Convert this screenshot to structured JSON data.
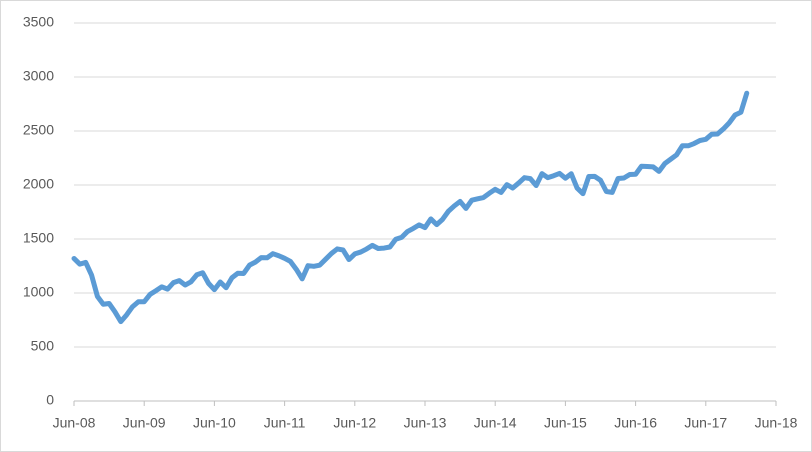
{
  "chart_data": {
    "type": "line",
    "x": [
      "2008-06",
      "2008-07",
      "2008-08",
      "2008-09",
      "2008-10",
      "2008-11",
      "2008-12",
      "2009-01",
      "2009-02",
      "2009-03",
      "2009-04",
      "2009-05",
      "2009-06",
      "2009-07",
      "2009-08",
      "2009-09",
      "2009-10",
      "2009-11",
      "2009-12",
      "2010-01",
      "2010-02",
      "2010-03",
      "2010-04",
      "2010-05",
      "2010-06",
      "2010-07",
      "2010-08",
      "2010-09",
      "2010-10",
      "2010-11",
      "2010-12",
      "2011-01",
      "2011-02",
      "2011-03",
      "2011-04",
      "2011-05",
      "2011-06",
      "2011-07",
      "2011-08",
      "2011-09",
      "2011-10",
      "2011-11",
      "2011-12",
      "2012-01",
      "2012-02",
      "2012-03",
      "2012-04",
      "2012-05",
      "2012-06",
      "2012-07",
      "2012-08",
      "2012-09",
      "2012-10",
      "2012-11",
      "2012-12",
      "2013-01",
      "2013-02",
      "2013-03",
      "2013-04",
      "2013-05",
      "2013-06",
      "2013-07",
      "2013-08",
      "2013-09",
      "2013-10",
      "2013-11",
      "2013-12",
      "2014-01",
      "2014-02",
      "2014-03",
      "2014-04",
      "2014-05",
      "2014-06",
      "2014-07",
      "2014-08",
      "2014-09",
      "2014-10",
      "2014-11",
      "2014-12",
      "2015-01",
      "2015-02",
      "2015-03",
      "2015-04",
      "2015-05",
      "2015-06",
      "2015-07",
      "2015-08",
      "2015-09",
      "2015-10",
      "2015-11",
      "2015-12",
      "2016-01",
      "2016-02",
      "2016-03",
      "2016-04",
      "2016-05",
      "2016-06",
      "2016-07",
      "2016-08",
      "2016-09",
      "2016-10",
      "2016-11",
      "2016-12",
      "2017-01",
      "2017-02",
      "2017-03",
      "2017-04",
      "2017-05",
      "2017-06",
      "2017-07",
      "2017-08",
      "2017-09",
      "2017-10",
      "2017-11",
      "2017-12",
      "2018-01"
    ],
    "series": [
      {
        "color": "#5b9bd5",
        "values": [
          1320,
          1267,
          1283,
          1166,
          969,
          896,
          903,
          826,
          735,
          798,
          873,
          919,
          919,
          987,
          1021,
          1057,
          1036,
          1096,
          1115,
          1074,
          1104,
          1169,
          1187,
          1089,
          1031,
          1102,
          1049,
          1141,
          1183,
          1181,
          1258,
          1286,
          1327,
          1326,
          1364,
          1345,
          1321,
          1292,
          1219,
          1131,
          1253,
          1247,
          1258,
          1312,
          1366,
          1408,
          1398,
          1310,
          1362,
          1379,
          1407,
          1441,
          1412,
          1416,
          1426,
          1498,
          1515,
          1569,
          1598,
          1631,
          1606,
          1686,
          1633,
          1682,
          1757,
          1806,
          1848,
          1783,
          1859,
          1872,
          1884,
          1924,
          1960,
          1931,
          2003,
          1972,
          2018,
          2068,
          2059,
          1995,
          2105,
          2068,
          2086,
          2107,
          2063,
          2104,
          1972,
          1920,
          2079,
          2080,
          2044,
          1940,
          1932,
          2060,
          2065,
          2097,
          2099,
          2174,
          2171,
          2168,
          2126,
          2199,
          2239,
          2279,
          2364,
          2363,
          2384,
          2412,
          2423,
          2470,
          2472,
          2519,
          2575,
          2648,
          2674,
          2850
        ]
      }
    ],
    "xlim": [
      "2008-06",
      "2018-06"
    ],
    "xticks": [
      {
        "value": "2008-06",
        "label": "Jun-08"
      },
      {
        "value": "2009-06",
        "label": "Jun-09"
      },
      {
        "value": "2010-06",
        "label": "Jun-10"
      },
      {
        "value": "2011-06",
        "label": "Jun-11"
      },
      {
        "value": "2012-06",
        "label": "Jun-12"
      },
      {
        "value": "2013-06",
        "label": "Jun-13"
      },
      {
        "value": "2014-06",
        "label": "Jun-14"
      },
      {
        "value": "2015-06",
        "label": "Jun-15"
      },
      {
        "value": "2016-06",
        "label": "Jun-16"
      },
      {
        "value": "2017-06",
        "label": "Jun-17"
      },
      {
        "value": "2018-06",
        "label": "Jun-18"
      }
    ],
    "ylim": [
      0,
      3500
    ],
    "yticks": [
      0,
      500,
      1000,
      1500,
      2000,
      2500,
      3000,
      3500
    ],
    "grid": true
  }
}
